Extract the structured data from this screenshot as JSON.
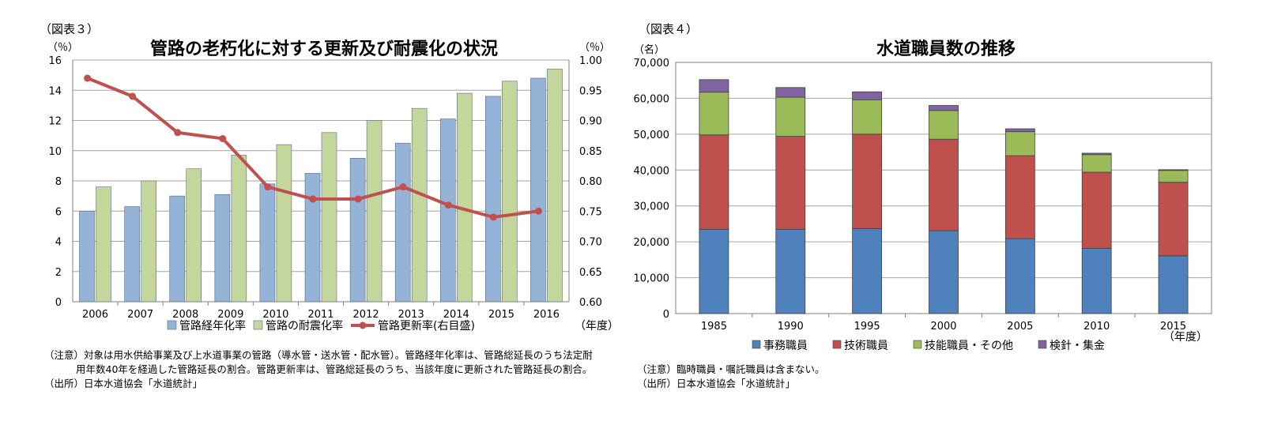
{
  "figure3": {
    "label": "（図表３）",
    "chart_data": {
      "type": "bar",
      "title": "管路の老朽化に対する更新及び耐震化の状況",
      "categories": [
        "2006",
        "2007",
        "2008",
        "2009",
        "2010",
        "2011",
        "2012",
        "2013",
        "2014",
        "2015",
        "2016"
      ],
      "left_axis_unit": "（％）",
      "right_axis_unit": "（％）",
      "x_unit": "（年度）",
      "left_ylim": [
        0,
        16
      ],
      "left_ticks": [
        "0",
        "2",
        "4",
        "6",
        "8",
        "10",
        "12",
        "14",
        "16"
      ],
      "right_ylim": [
        0.6,
        1.0
      ],
      "right_ticks": [
        "0.60",
        "0.65",
        "0.70",
        "0.75",
        "0.80",
        "0.85",
        "0.90",
        "0.95",
        "1.00"
      ],
      "grid": "horizontal",
      "legend_position": "bottom",
      "series": [
        {
          "name": "管路経年化率",
          "type": "bar",
          "axis": "left",
          "color": "#95b3d7",
          "values": [
            6.0,
            6.3,
            7.0,
            7.1,
            7.8,
            8.5,
            9.5,
            10.5,
            12.1,
            13.6,
            14.8
          ]
        },
        {
          "name": "管路の耐震化率",
          "type": "bar",
          "axis": "left",
          "color": "#c3d69b",
          "values": [
            7.6,
            8.0,
            8.8,
            9.7,
            10.4,
            11.2,
            12.0,
            12.8,
            13.8,
            14.6,
            15.4
          ]
        },
        {
          "name": "管路更新率(右目盛)",
          "type": "line",
          "axis": "right",
          "color": "#c0504d",
          "values": [
            0.97,
            0.94,
            0.88,
            0.87,
            0.79,
            0.77,
            0.77,
            0.79,
            0.76,
            0.74,
            0.75
          ]
        }
      ]
    },
    "notes": [
      "（注意）対象は用水供給事業及び上水道事業の管路（導水管・送水管・配水管）。管路経年化率は、管路総延長のうち法定耐",
      "用年数40年を経過した管路延長の割合。管路更新率は、管路総延長のうち、当該年度に更新された管路延長の割合。",
      "（出所）日本水道協会「水道統計」"
    ]
  },
  "figure4": {
    "label": "（図表４）",
    "chart_data": {
      "type": "bar",
      "stacked": true,
      "title": "水道職員数の推移",
      "categories": [
        "1985",
        "1990",
        "1995",
        "2000",
        "2005",
        "2010",
        "2015"
      ],
      "y_unit": "（名）",
      "x_unit": "（年度）",
      "ylim": [
        0,
        70000
      ],
      "y_ticks": [
        "0",
        "10,000",
        "20,000",
        "30,000",
        "40,000",
        "50,000",
        "60,000",
        "70,000"
      ],
      "grid": "horizontal",
      "legend_position": "bottom",
      "series": [
        {
          "name": "事務職員",
          "color": "#4f81bd",
          "values": [
            23500,
            23500,
            23700,
            23100,
            20900,
            18200,
            16100
          ]
        },
        {
          "name": "技術職員",
          "color": "#c0504d",
          "values": [
            26300,
            25900,
            26300,
            25500,
            23100,
            21200,
            20500
          ]
        },
        {
          "name": "技能職員・その他",
          "color": "#9bbb59",
          "values": [
            11900,
            10900,
            9600,
            8000,
            6700,
            4900,
            3300
          ]
        },
        {
          "name": "検針・集金",
          "color": "#8064a2",
          "values": [
            3500,
            2700,
            2200,
            1400,
            800,
            400,
            200
          ]
        }
      ]
    },
    "notes": [
      "（注意）臨時職員・嘱託職員は含まない。",
      "（出所）日本水道協会「水道統計」"
    ]
  }
}
